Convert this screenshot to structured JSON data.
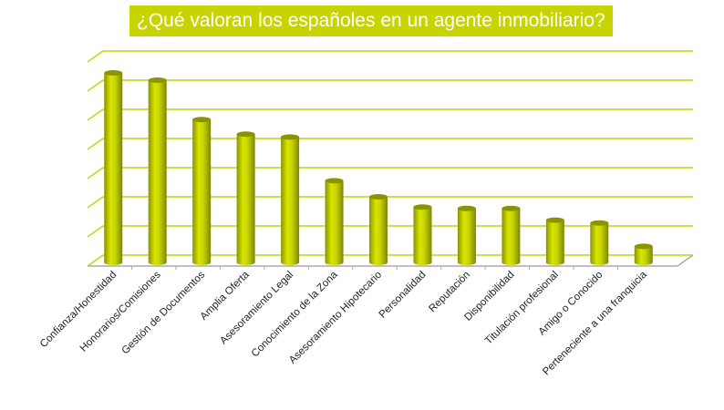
{
  "chart_data": {
    "type": "bar",
    "style": "3d-cylinder",
    "title": "¿Qué valoran los españoles en un agente inmobiliario?",
    "categories": [
      "Confianza/Honestidad",
      "Honorarios/Comisiones",
      "Gestión de Documentos",
      "Amplia Oferta",
      "Asesoramiento Legal",
      "Conocimiento de la Zona",
      "Asesoramiento Hipotecario",
      "Personalidad",
      "Reputación",
      "Disponibilidad",
      "Titulación profesional",
      "Amigo o Conocido",
      "Perteneciente a una franquicia"
    ],
    "values": [
      6.5,
      6.25,
      4.9,
      4.4,
      4.3,
      2.8,
      2.25,
      1.9,
      1.85,
      1.85,
      1.45,
      1.35,
      0.55
    ],
    "ylim": [
      0,
      7
    ],
    "grid": true,
    "y_tick_labels_shown": false,
    "colors": {
      "bar": "#c8d400",
      "bar_dark": "#8a9400",
      "grid": "#c8d400",
      "title_bg": "#c8d400",
      "title_text": "#ffffff"
    }
  }
}
